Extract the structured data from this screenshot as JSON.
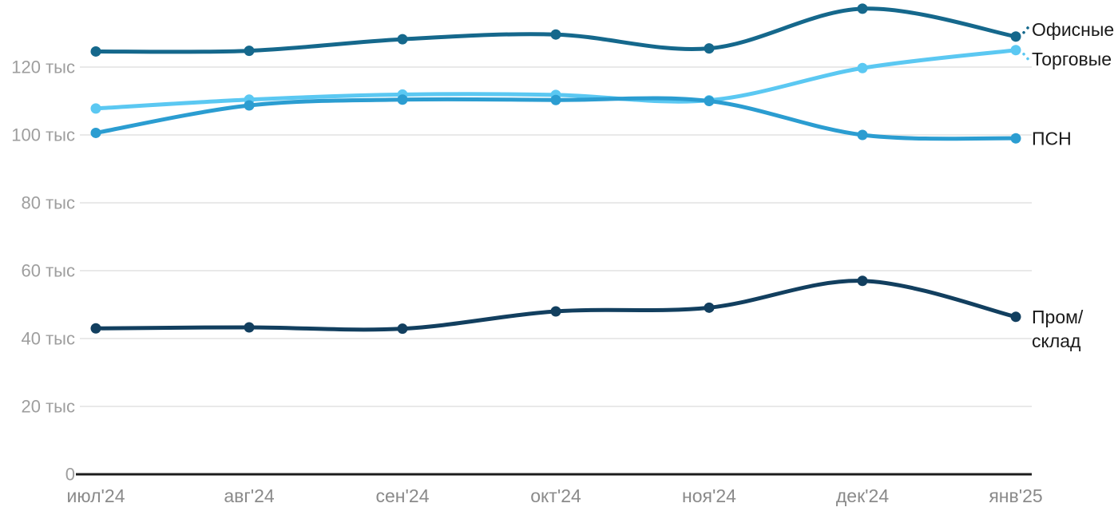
{
  "chart_data": {
    "type": "line",
    "title": "",
    "xlabel": "",
    "ylabel": "",
    "y_unit": "тыс",
    "categories": [
      "июл'24",
      "авг'24",
      "сен'24",
      "окт'24",
      "ноя'24",
      "дек'24",
      "янв'25"
    ],
    "y_ticks": [
      {
        "value": 0,
        "label": "0"
      },
      {
        "value": 20,
        "label": "20 тыс"
      },
      {
        "value": 40,
        "label": "40 тыс"
      },
      {
        "value": 60,
        "label": "60 тыс"
      },
      {
        "value": 80,
        "label": "80 тыс"
      },
      {
        "value": 100,
        "label": "100 тыс"
      },
      {
        "value": 120,
        "label": "120 тыс"
      }
    ],
    "ylim": [
      0,
      140
    ],
    "grid": "horizontal",
    "legend_position": "end-of-line-labels-right",
    "series": [
      {
        "name": "Торговые",
        "label_lines": [
          "Торговые"
        ],
        "color": "#5bc8f2",
        "leader": "dotted-down",
        "values": [
          107.8,
          110.4,
          111.9,
          111.8,
          110.2,
          119.7,
          125.0
        ]
      },
      {
        "name": "ПСН",
        "label_lines": [
          "ПСН"
        ],
        "color": "#2b9dd1",
        "leader": "none",
        "values": [
          100.6,
          108.7,
          110.4,
          110.3,
          110.0,
          100.0,
          99.0
        ]
      },
      {
        "name": "Офисные",
        "label_lines": [
          "Офисные"
        ],
        "color": "#15688c",
        "leader": "dotted-up",
        "values": [
          124.6,
          124.8,
          128.2,
          129.6,
          125.5,
          137.2,
          129.0
        ]
      },
      {
        "name": "Пром/склад",
        "label_lines": [
          "Пром/",
          "склад"
        ],
        "color": "#123f5f",
        "leader": "none",
        "values": [
          43.0,
          43.3,
          42.9,
          48.0,
          49.1,
          57.0,
          46.4
        ]
      }
    ],
    "colors": {
      "axis": "#1c1c1c",
      "grid": "#e9e9e9",
      "y_tick_label": "#9e9e9e",
      "x_tick_label": "#8a8a8a",
      "series_label": "#1a1a1a",
      "background": "#ffffff"
    }
  }
}
